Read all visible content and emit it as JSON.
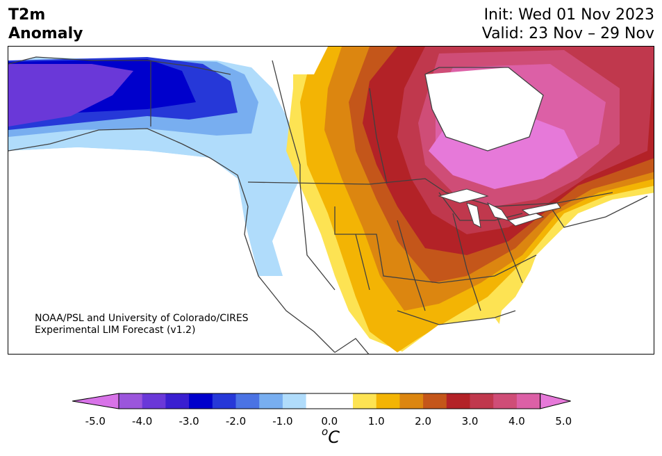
{
  "title": {
    "left_line1": "T2m",
    "left_line2": "Anomaly",
    "right_line1": "Init: Wed 01 Nov 2023",
    "right_line2": "Valid: 23 Nov – 29 Nov"
  },
  "credit": {
    "line1": "NOAA/PSL and University of Colorado/CIRES",
    "line2": "Experimental LIM Forecast (v1.2)"
  },
  "colorbar": {
    "colors": [
      "#d873e8",
      "#9b55dc",
      "#6a38d8",
      "#3a1fd0",
      "#0000cc",
      "#2638d8",
      "#4b73e4",
      "#78aef0",
      "#b0dcfb",
      "#ffffff",
      "#ffffff",
      "#fde353",
      "#f3b404",
      "#dc8610",
      "#c4561a",
      "#b32227",
      "#c0384d",
      "#cf4d77",
      "#dc60a6",
      "#e679d9"
    ],
    "ticks": [
      "-5.0",
      "-4.0",
      "-3.0",
      "-2.0",
      "-1.0",
      "0.0",
      "1.0",
      "2.0",
      "3.0",
      "4.0",
      "5.0"
    ],
    "units_base": "C",
    "units_sup": "o"
  }
}
